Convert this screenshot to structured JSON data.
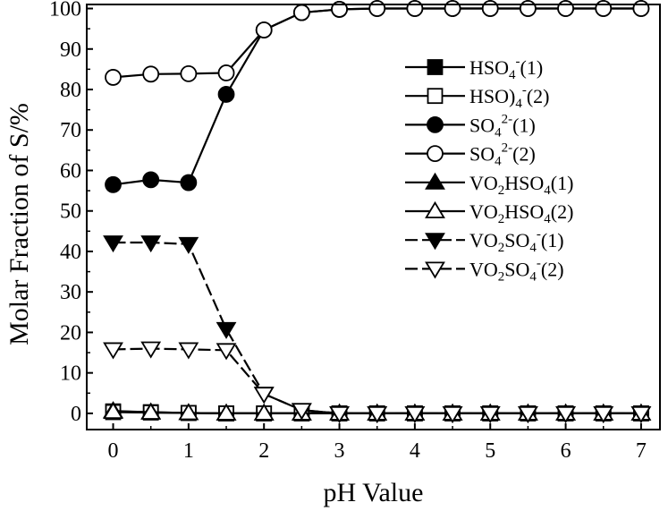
{
  "chart_data": {
    "type": "line",
    "xlabel": "pH Value",
    "ylabel": "Molar Fraction of S/%",
    "xlim": [
      -0.35,
      7.25
    ],
    "ylim": [
      -4,
      101
    ],
    "xticks": [
      0,
      1,
      2,
      3,
      4,
      5,
      6,
      7
    ],
    "yticks": [
      0,
      10,
      20,
      30,
      40,
      50,
      60,
      70,
      80,
      90,
      100
    ],
    "grid": false,
    "legend_position": "right",
    "x": [
      0,
      0.5,
      1,
      1.5,
      2,
      2.5,
      3,
      3.5,
      4,
      4.5,
      5,
      5.5,
      6,
      6.5,
      7
    ],
    "series": [
      {
        "name": "HSO4-(1)",
        "legend_parts": [
          {
            "t": "HSO",
            "s": ""
          },
          {
            "t": "4",
            "s": "sub"
          },
          {
            "t": "-",
            "s": "sup"
          },
          {
            "t": "(1)",
            "s": ""
          }
        ],
        "marker": "square",
        "filled": true,
        "dashed": false,
        "values": [
          0.5,
          0.3,
          0.1,
          0,
          0,
          0,
          0,
          0,
          0,
          0,
          0,
          0,
          0,
          0,
          0
        ]
      },
      {
        "name": "HSO)4-(2)",
        "legend_parts": [
          {
            "t": "HSO)",
            "s": ""
          },
          {
            "t": "4",
            "s": "sub"
          },
          {
            "t": "-",
            "s": "sup"
          },
          {
            "t": "(2)",
            "s": ""
          }
        ],
        "marker": "square",
        "filled": false,
        "dashed": false,
        "values": [
          0.3,
          0.2,
          0.1,
          0,
          0,
          0,
          0,
          0,
          0,
          0,
          0,
          0,
          0,
          0,
          0
        ]
      },
      {
        "name": "SO42-(1)",
        "legend_parts": [
          {
            "t": "SO",
            "s": ""
          },
          {
            "t": "4",
            "s": "sub"
          },
          {
            "t": "2-",
            "s": "sup"
          },
          {
            "t": "(1)",
            "s": ""
          }
        ],
        "marker": "circle",
        "filled": true,
        "dashed": false,
        "values": [
          56.5,
          57.7,
          57,
          78.8,
          94.7,
          99,
          99.8,
          100,
          100,
          100,
          100,
          100,
          100,
          100,
          100
        ]
      },
      {
        "name": "SO42-(2)",
        "legend_parts": [
          {
            "t": "SO",
            "s": ""
          },
          {
            "t": "4",
            "s": "sub"
          },
          {
            "t": "2-",
            "s": "sup"
          },
          {
            "t": "(2)",
            "s": ""
          }
        ],
        "marker": "circle",
        "filled": false,
        "dashed": false,
        "values": [
          83,
          83.8,
          83.9,
          84.1,
          94.7,
          99,
          99.8,
          100,
          100,
          100,
          100,
          100,
          100,
          100,
          100
        ]
      },
      {
        "name": "VO2HSO4(1)",
        "legend_parts": [
          {
            "t": "VO",
            "s": ""
          },
          {
            "t": "2",
            "s": "sub"
          },
          {
            "t": "HSO",
            "s": ""
          },
          {
            "t": "4",
            "s": "sub"
          },
          {
            "t": "(1)",
            "s": ""
          }
        ],
        "marker": "triangle-up",
        "filled": true,
        "dashed": false,
        "values": [
          0.6,
          0.3,
          0.1,
          0,
          0,
          0,
          0,
          0,
          0,
          0,
          0,
          0,
          0,
          0,
          0
        ]
      },
      {
        "name": "VO2HSO4(2)",
        "legend_parts": [
          {
            "t": "VO",
            "s": ""
          },
          {
            "t": "2",
            "s": "sub"
          },
          {
            "t": "HSO",
            "s": ""
          },
          {
            "t": "4",
            "s": "sub"
          },
          {
            "t": "(2)",
            "s": ""
          }
        ],
        "marker": "triangle-up",
        "filled": false,
        "dashed": false,
        "values": [
          0.4,
          0.2,
          0.1,
          0,
          0,
          0,
          0,
          0,
          0,
          0,
          0,
          0,
          0,
          0,
          0
        ]
      },
      {
        "name": "VO2SO4-(1)",
        "legend_parts": [
          {
            "t": "VO",
            "s": ""
          },
          {
            "t": "2",
            "s": "sub"
          },
          {
            "t": "SO",
            "s": ""
          },
          {
            "t": "4",
            "s": "sub"
          },
          {
            "t": "-",
            "s": "sup"
          },
          {
            "t": "(1)",
            "s": ""
          }
        ],
        "marker": "triangle-down",
        "filled": true,
        "dashed": true,
        "values": [
          42.2,
          42.2,
          41.8,
          20.8,
          4.8,
          0.8,
          0,
          0,
          0,
          0,
          0,
          0,
          0,
          0,
          0
        ]
      },
      {
        "name": "VO2SO4-(2)",
        "legend_parts": [
          {
            "t": "VO",
            "s": ""
          },
          {
            "t": "2",
            "s": "sub"
          },
          {
            "t": "SO",
            "s": ""
          },
          {
            "t": "4",
            "s": "sub"
          },
          {
            "t": "-",
            "s": "sup"
          },
          {
            "t": "(2)",
            "s": ""
          }
        ],
        "marker": "triangle-down",
        "filled": false,
        "dashed": true,
        "values": [
          15.8,
          16,
          15.8,
          15.6,
          4.8,
          0.8,
          0,
          0,
          0,
          0,
          0,
          0,
          0,
          0,
          0
        ]
      }
    ]
  }
}
